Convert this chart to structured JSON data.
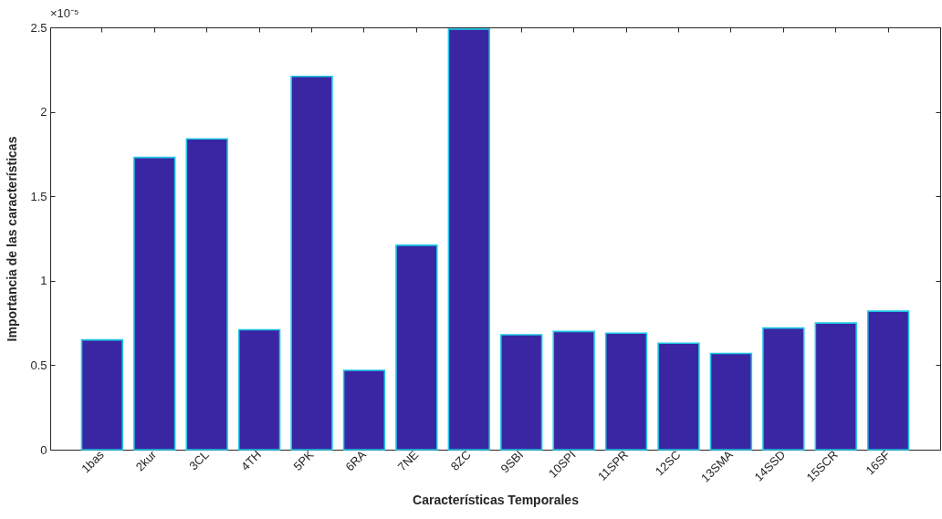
{
  "chart_data": {
    "type": "bar",
    "xlabel": "Características Temporales",
    "ylabel": "Importancia de las características",
    "annotations": [
      "×10⁻⁵"
    ],
    "categories": [
      "1bas",
      "2kur",
      "3CL",
      "4TH",
      "5PK",
      "6RA",
      "7NE",
      "8ZC",
      "9SBI",
      "10SPI",
      "11SPR",
      "12SC",
      "13SMA",
      "14SSD",
      "15SCR",
      "16SF"
    ],
    "values": [
      0.65,
      1.73,
      1.84,
      0.71,
      2.21,
      0.47,
      1.21,
      2.49,
      0.68,
      0.7,
      0.69,
      0.63,
      0.57,
      0.72,
      0.75,
      0.82
    ],
    "color": "#3a26a2",
    "ylim": [
      0,
      2.5
    ],
    "yticks": [
      0,
      0.5,
      1,
      1.5,
      2,
      2.5
    ],
    "grid": false
  }
}
